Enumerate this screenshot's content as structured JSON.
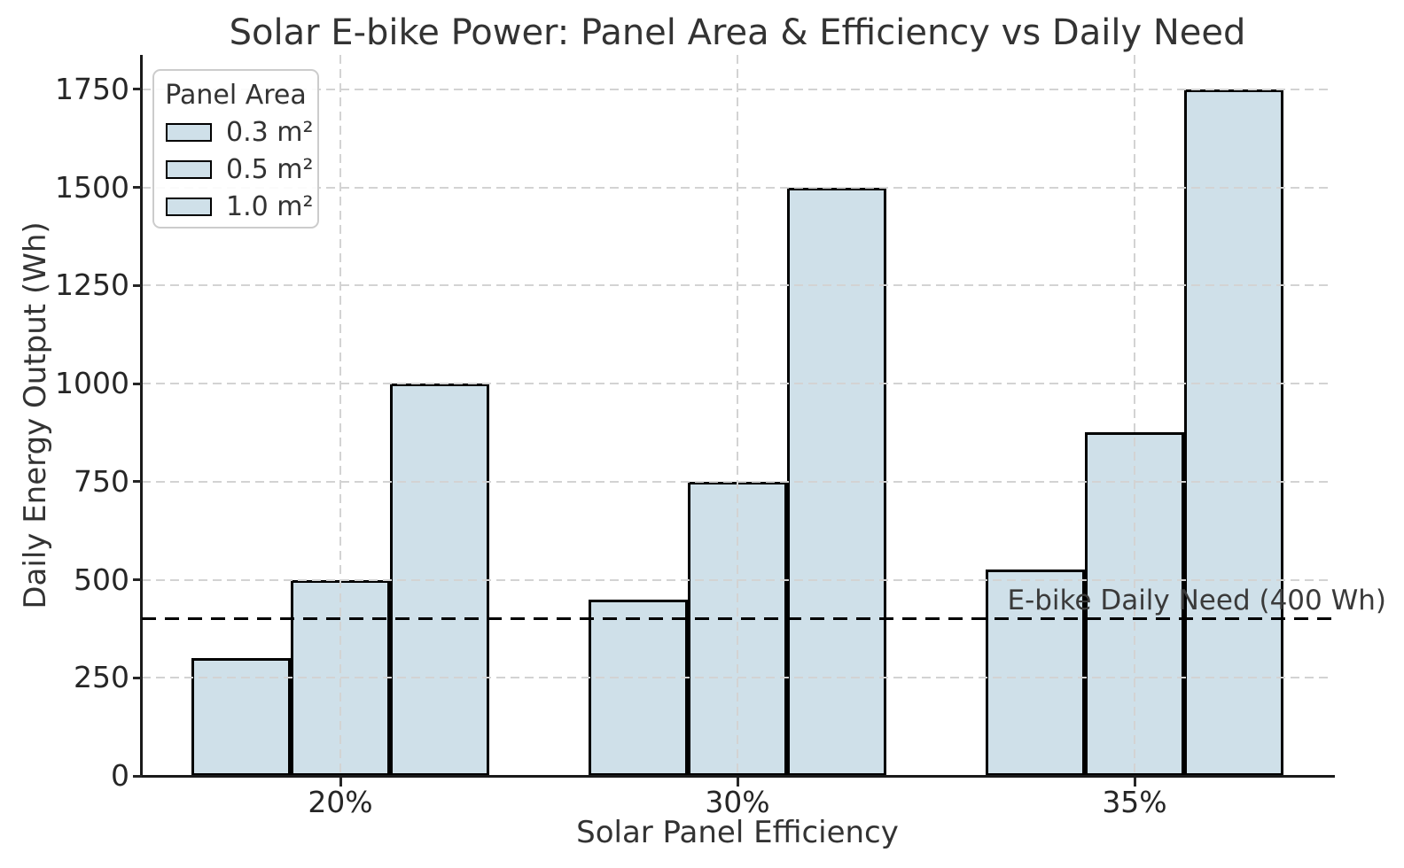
{
  "chart_data": {
    "type": "bar",
    "title": "Solar E-bike Power: Panel Area & Efficiency vs Daily Need",
    "xlabel": "Solar Panel Efficiency",
    "ylabel": "Daily Energy Output (Wh)",
    "categories": [
      "20%",
      "30%",
      "35%"
    ],
    "series": [
      {
        "name": "0.3 m²",
        "values": [
          300,
          450,
          525
        ]
      },
      {
        "name": "0.5 m²",
        "values": [
          500,
          750,
          875
        ]
      },
      {
        "name": "1.0 m²",
        "values": [
          1000,
          1500,
          1750
        ]
      }
    ],
    "legend_title": "Panel Area",
    "legend_position": "upper left",
    "yticks": [
      0,
      250,
      500,
      750,
      1000,
      1250,
      1500,
      1750
    ],
    "ylim": [
      0,
      1837.5
    ],
    "grid": true,
    "reference_line": {
      "value": 400,
      "label": "E-bike Daily Need (400 Wh)",
      "style": "dashed",
      "color": "#000000"
    },
    "colors": {
      "bar_fill": "#cfe0e9",
      "bar_edge": "#000000",
      "grid": "#d3d3d3",
      "text": "#333333"
    }
  }
}
